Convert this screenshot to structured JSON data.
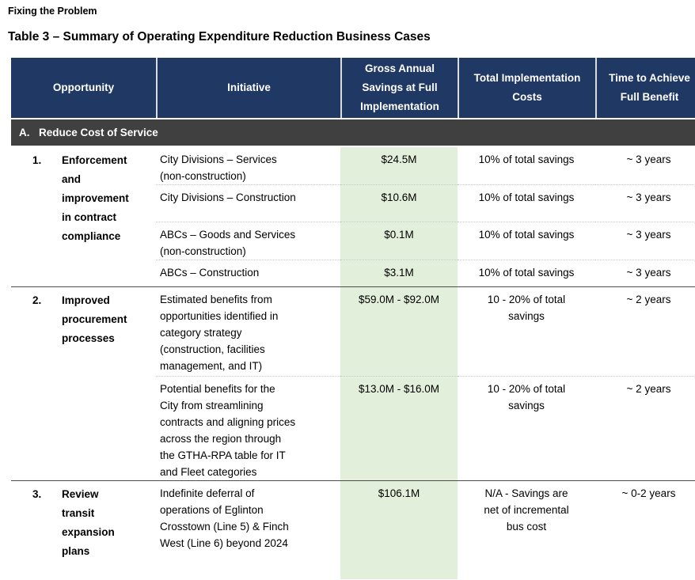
{
  "page": {
    "heading": "Fixing the Problem",
    "table_title": "Table 3 – Summary of Operating Expenditure Reduction Business Cases"
  },
  "colors": {
    "header_bg": "#1F3864",
    "header_text": "#FFFFFF",
    "section_bg": "#404040",
    "section_text": "#FFFFFF",
    "savings_column_bg": "#E2EFDA",
    "body_text": "#000000"
  },
  "table": {
    "columns": [
      "Opportunity",
      "Initiative",
      "Gross Annual Savings at Full Implementation",
      "Total Implementation Costs",
      "Time to Achieve Full Benefit"
    ],
    "section": {
      "letter": "A.",
      "title": "Reduce Cost of Service"
    },
    "groups": [
      {
        "number": "1.",
        "opportunity": "Enforcement\nand\nimprovement\nin contract\ncompliance",
        "rows": [
          {
            "initiative": "City Divisions – Services\n(non-construction)",
            "savings": "$24.5M",
            "costs": "10% of total savings",
            "time": "~ 3 years"
          },
          {
            "initiative": "City Divisions – Construction",
            "savings": "$10.6M",
            "costs": "10% of total savings",
            "time": "~ 3 years"
          },
          {
            "initiative": "ABCs – Goods and Services\n(non-construction)",
            "savings": "$0.1M",
            "costs": "10% of total savings",
            "time": "~ 3 years"
          },
          {
            "initiative": "ABCs – Construction",
            "savings": "$3.1M",
            "costs": "10% of total savings",
            "time": "~ 3 years"
          }
        ]
      },
      {
        "number": "2.",
        "opportunity": "Improved\nprocurement\nprocesses",
        "rows": [
          {
            "initiative": "Estimated benefits from\nopportunities identified in\ncategory strategy\n(construction, facilities\nmanagement, and IT)",
            "savings": "$59.0M - $92.0M",
            "costs": "10 - 20% of total\nsavings",
            "time": "~ 2 years"
          },
          {
            "initiative": "Potential benefits for the\nCity from streamlining\ncontracts and aligning prices\nacross the region through\nthe GTHA-RPA table for IT\nand Fleet categories",
            "savings": "$13.0M - $16.0M",
            "costs": "10 - 20% of total\nsavings",
            "time": "~ 2 years"
          }
        ]
      },
      {
        "number": "3.",
        "opportunity": "Review\ntransit\nexpansion\nplans",
        "rows": [
          {
            "initiative": "Indefinite deferral of\noperations of Eglinton\nCrosstown (Line 5) & Finch\nWest (Line 6) beyond 2024",
            "savings": "$106.1M",
            "costs": "N/A - Savings are\nnet of incremental\nbus cost",
            "time": "~ 0-2 years"
          }
        ]
      }
    ]
  }
}
